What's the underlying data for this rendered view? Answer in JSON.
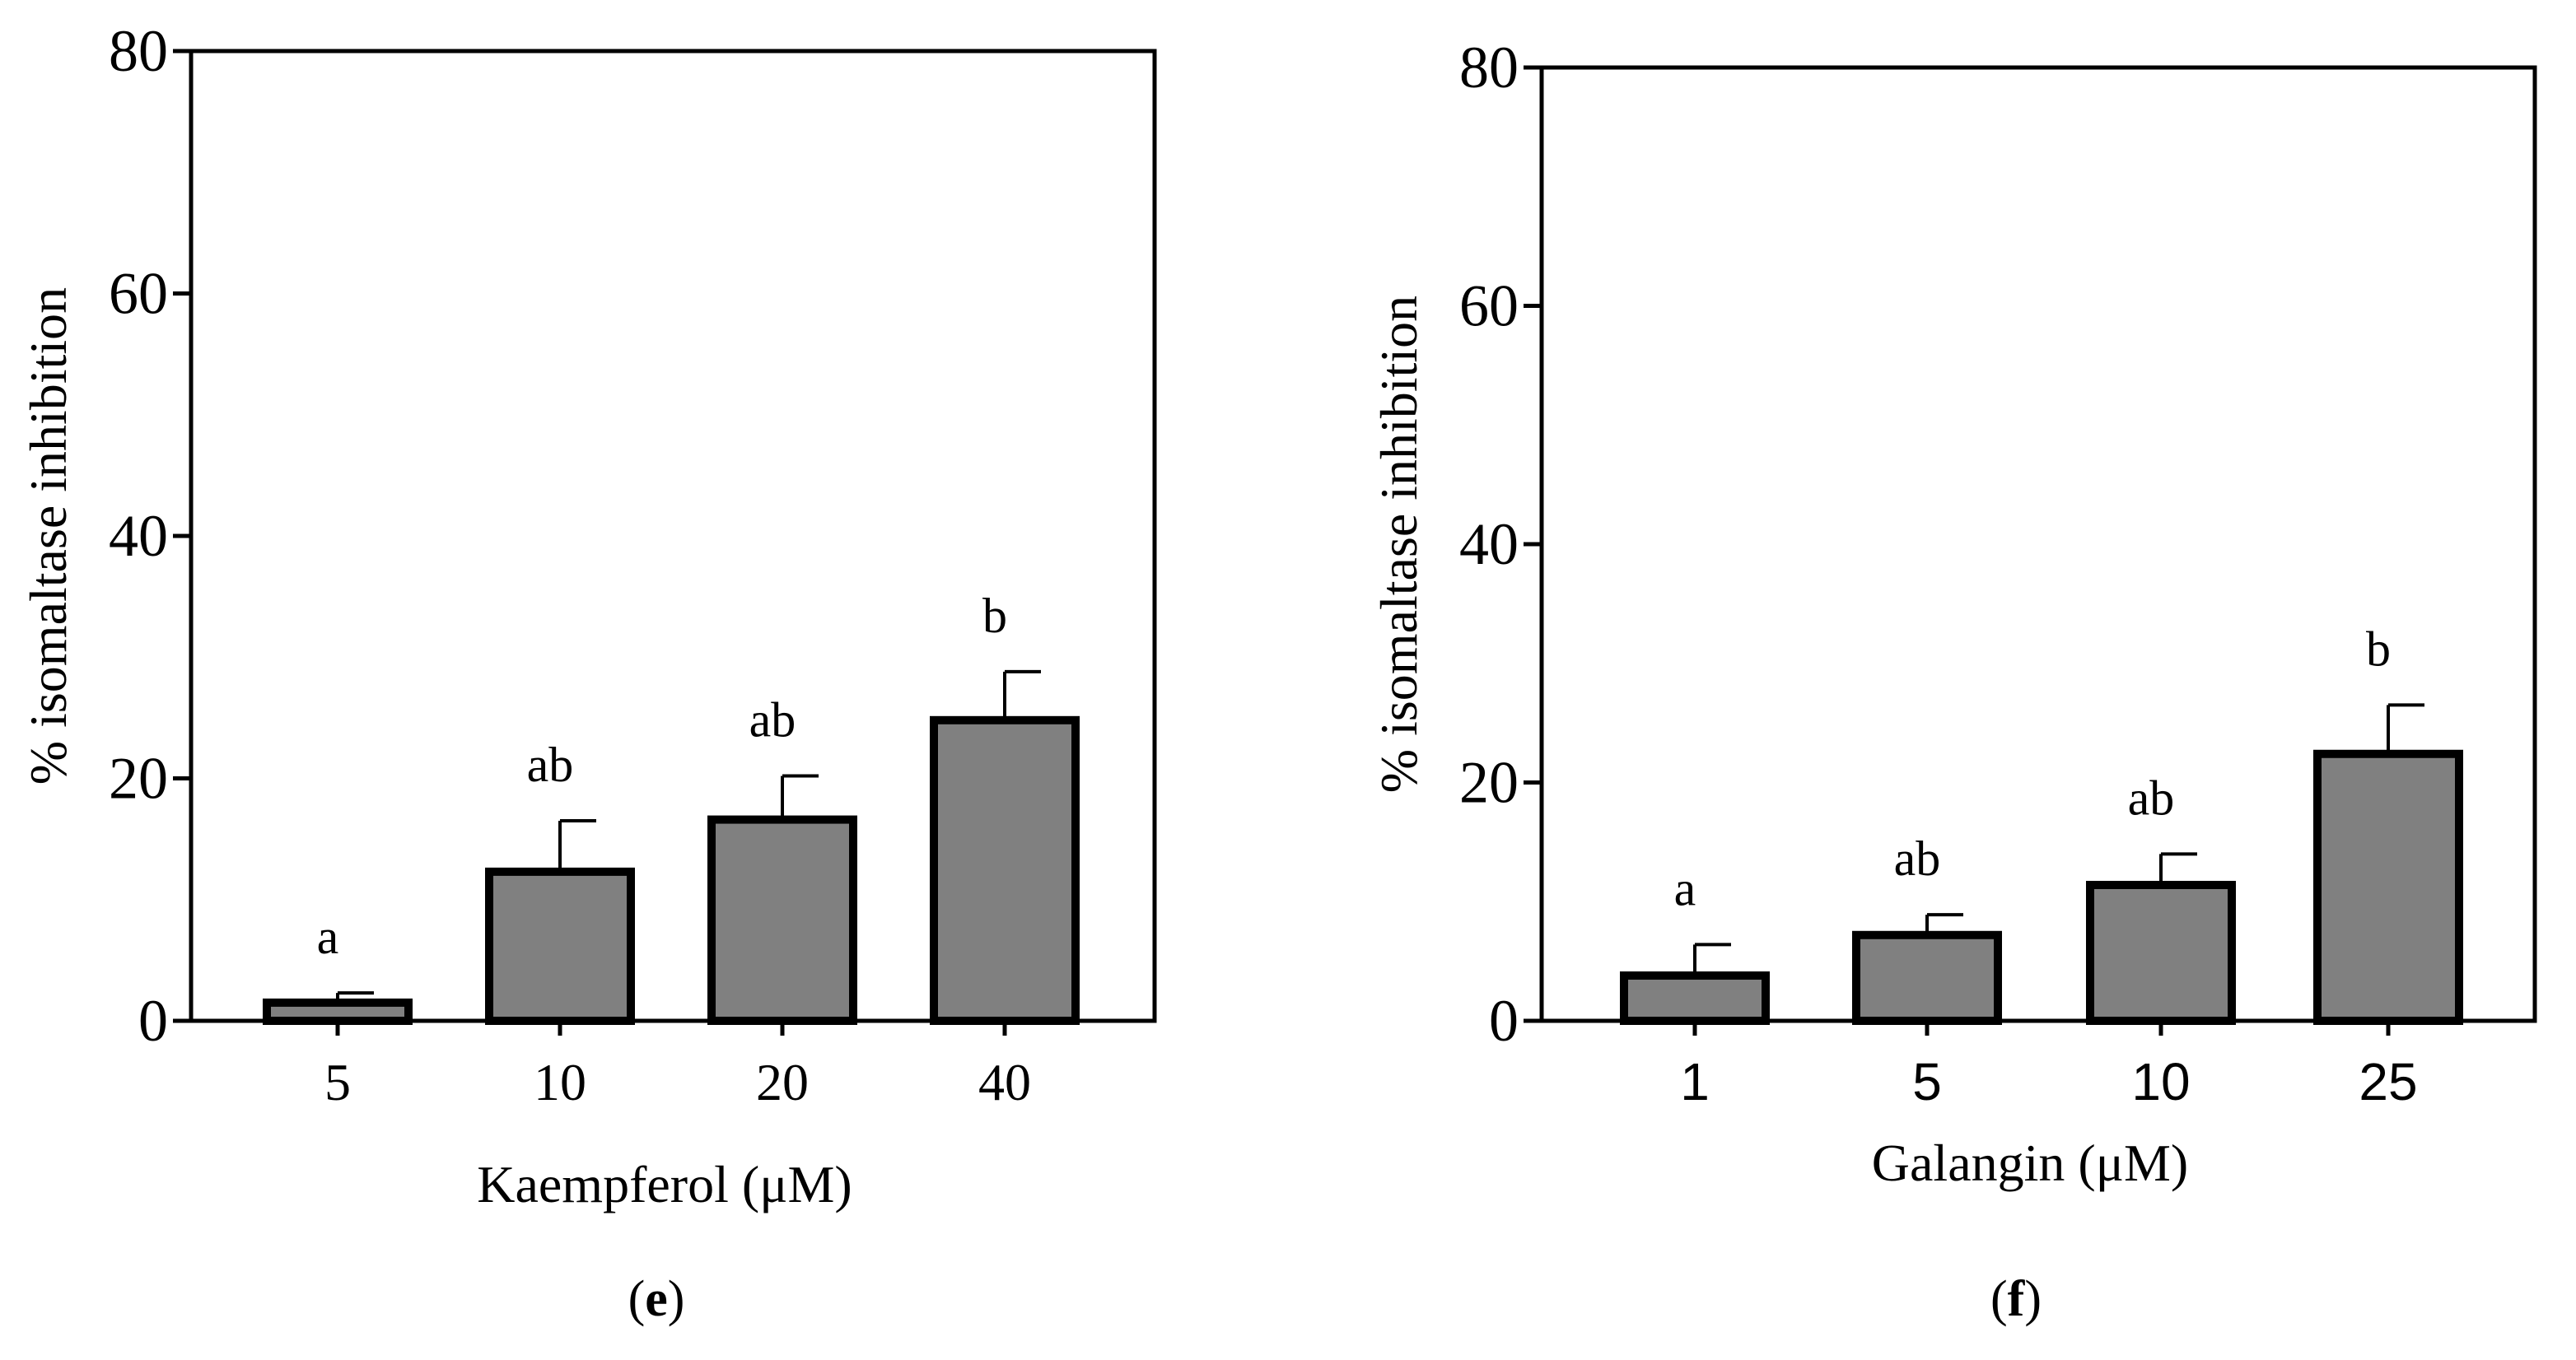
{
  "figure": {
    "panels": [
      {
        "id": "e",
        "label_text": "e"
      },
      {
        "id": "f",
        "label_text": "f"
      }
    ]
  },
  "chart_data": [
    {
      "type": "bar",
      "panel": "e",
      "categories": [
        "5",
        "10",
        "20",
        "40"
      ],
      "values": [
        1.5,
        12.3,
        16.6,
        24.8
      ],
      "errors": [
        0.8,
        4.2,
        3.6,
        4.0
      ],
      "significance_letters": [
        "a",
        "ab",
        "ab",
        "b"
      ],
      "xlabel": "Kaempferol (μM)",
      "ylabel": "% isomaltase inhibition",
      "ylim": [
        0,
        80
      ],
      "yticks": [
        "0",
        "20",
        "40",
        "60",
        "80"
      ],
      "bar_color": "#808080",
      "bar_edge_color": "#000000",
      "tick_font": "serif",
      "grid": false,
      "frame": "box"
    },
    {
      "type": "bar",
      "panel": "f",
      "categories": [
        "1",
        "5",
        "10",
        "25"
      ],
      "values": [
        3.8,
        7.2,
        11.4,
        22.4
      ],
      "errors": [
        2.6,
        1.7,
        2.6,
        4.1
      ],
      "significance_letters": [
        "a",
        "ab",
        "ab",
        "b"
      ],
      "xlabel": "Galangin (μM)",
      "ylabel": "% isomaltase inhibition",
      "ylim": [
        0,
        80
      ],
      "yticks": [
        "0",
        "20",
        "40",
        "60",
        "80"
      ],
      "bar_color": "#808080",
      "bar_edge_color": "#000000",
      "tick_font": "sans",
      "grid": false,
      "frame": "box"
    }
  ]
}
